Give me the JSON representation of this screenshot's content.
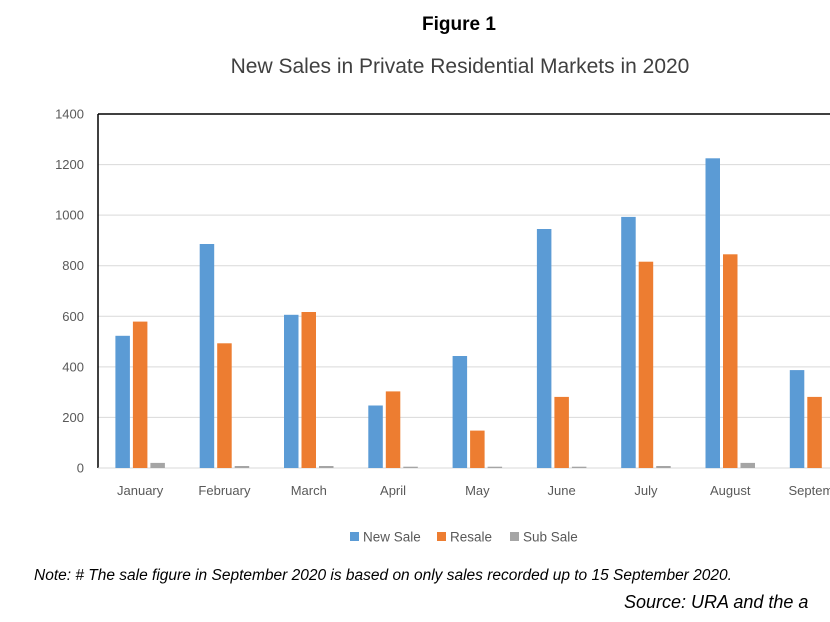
{
  "figure_label": "Figure 1",
  "note": "Note: # The sale figure in September 2020 is based on only sales recorded up to 15 September 2020.",
  "source": "Source: URA and the a",
  "chart_data": {
    "type": "bar",
    "title": "New Sales in Private Residential Markets in 2020",
    "xlabel": "",
    "ylabel": "",
    "categories": [
      "January",
      "February",
      "March",
      "April",
      "May",
      "June",
      "July",
      "August",
      "Septemb"
    ],
    "series": [
      {
        "name": "New Sale",
        "color": "#5b9bd5",
        "values": [
          523,
          886,
          606,
          247,
          443,
          945,
          993,
          1225,
          387
        ]
      },
      {
        "name": "Resale",
        "color": "#ed7d31",
        "values": [
          579,
          493,
          617,
          303,
          148,
          281,
          816,
          845,
          281
        ]
      },
      {
        "name": "Sub Sale",
        "color": "#a5a5a5",
        "values": [
          20,
          8,
          8,
          5,
          5,
          5,
          8,
          20,
          0
        ]
      }
    ],
    "ylim": [
      0,
      1400
    ],
    "yticks": [
      0,
      200,
      400,
      600,
      800,
      1000,
      1200,
      1400
    ],
    "grid": true,
    "legend_position": "bottom"
  }
}
